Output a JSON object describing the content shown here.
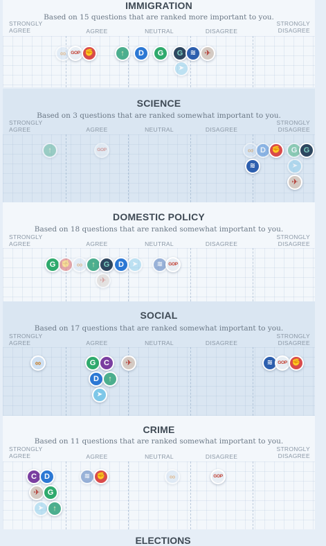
{
  "scale": {
    "strongly_agree": [
      "STRONGLY",
      "AGREE"
    ],
    "agree": "AGREE",
    "neutral": "NEUTRAL",
    "disagree": "DISAGREE",
    "strongly_disagree": [
      "STRONGLY",
      "DISAGREE"
    ]
  },
  "sections": [
    {
      "title": "IMMIGRATION",
      "subtitle": "Based on 15 questions that are ranked more important to you."
    },
    {
      "title": "SCIENCE",
      "subtitle": "Based on 3 questions that are ranked somewhat important to you."
    },
    {
      "title": "DOMESTIC POLICY",
      "subtitle": "Based on 18 questions that are ranked somewhat important to you."
    },
    {
      "title": "SOCIAL",
      "subtitle": "Based on 17 questions that are ranked somewhat important to you."
    },
    {
      "title": "CRIME",
      "subtitle": "Based on 11 questions that are ranked somewhat important to you."
    }
  ],
  "next_section_title": "ELECTIONS",
  "party_icons": {
    "democratic": {
      "glyph": "D",
      "icon": "democratic-party-icon"
    },
    "republican": {
      "glyph": "GOP",
      "icon": "republican-party-icon"
    },
    "green": {
      "glyph": "G",
      "icon": "green-party-icon"
    },
    "libertarian": {
      "glyph": "∞",
      "icon": "libertarian-party-icon"
    },
    "constitution": {
      "glyph": "✦",
      "icon": "constitution-party-icon"
    },
    "socialist": {
      "glyph": "✊",
      "icon": "socialist-party-icon"
    },
    "american": {
      "glyph": "≋",
      "icon": "flag-party-icon"
    },
    "eagle": {
      "glyph": "✈",
      "icon": "eagle-party-icon"
    },
    "dark": {
      "glyph": "G",
      "icon": "independent-party-icon"
    },
    "paper": {
      "glyph": "➤",
      "icon": "paper-plane-party-icon"
    },
    "tree": {
      "glyph": "↑",
      "icon": "torch-party-icon"
    },
    "purple": {
      "glyph": "C",
      "icon": "progressive-party-icon"
    }
  }
}
